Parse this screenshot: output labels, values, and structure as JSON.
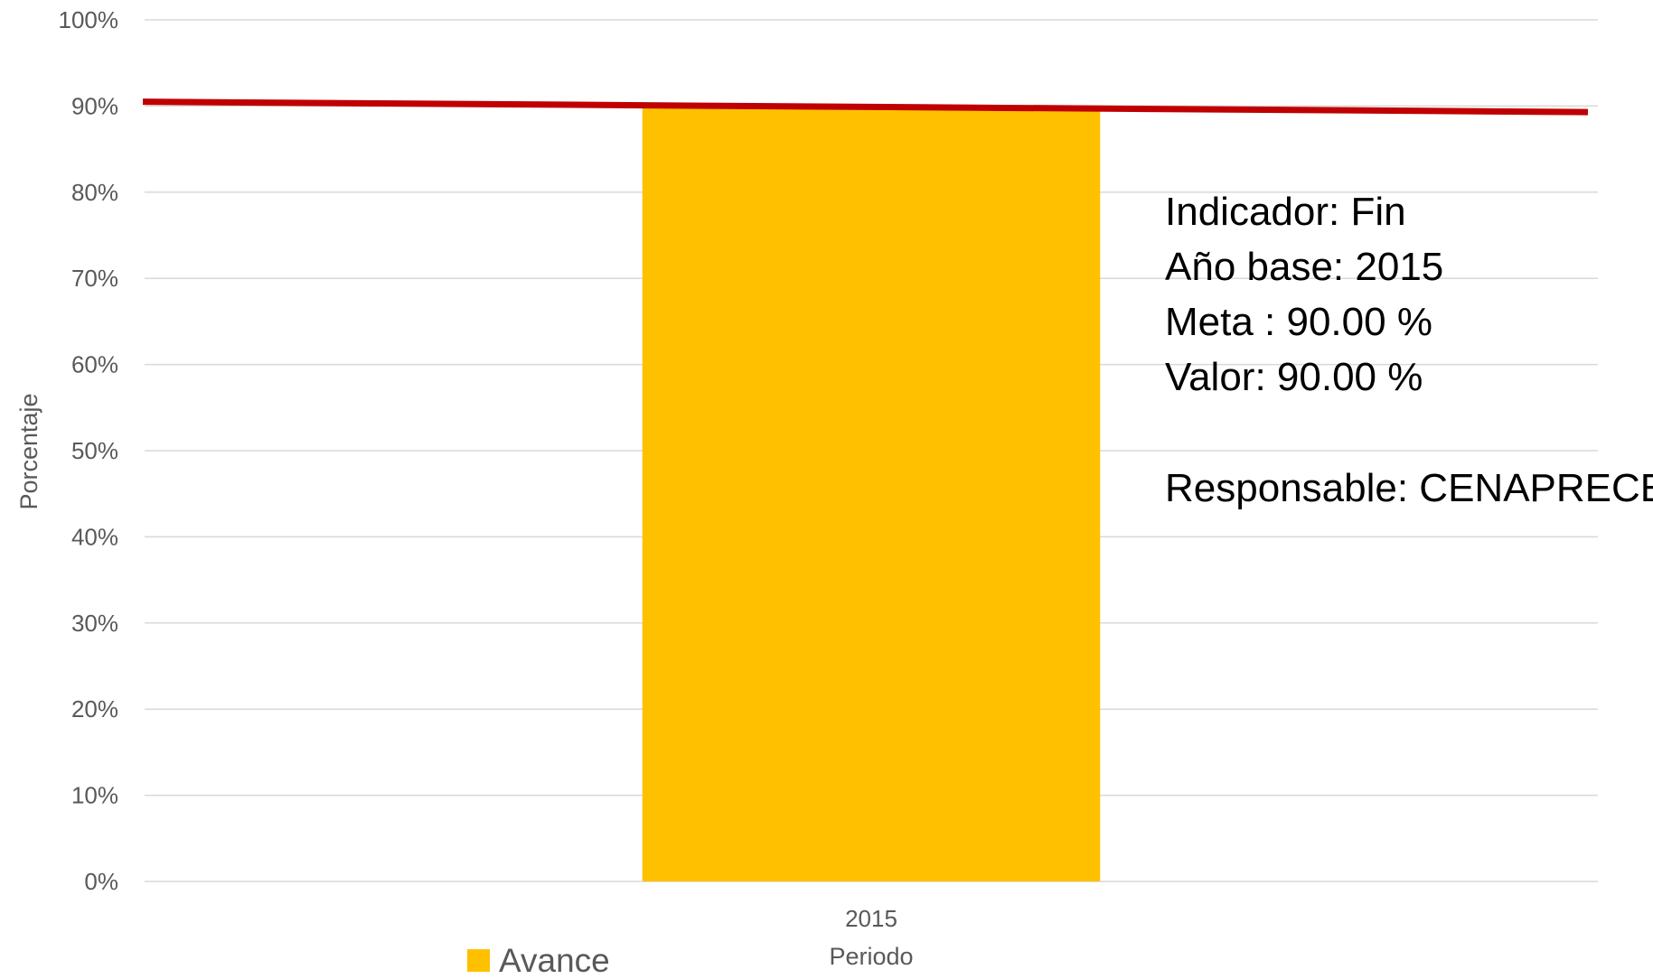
{
  "chart_data": {
    "type": "bar",
    "categories": [
      "2015"
    ],
    "series": [
      {
        "name": "Avance",
        "values": [
          90
        ],
        "color": "#FFC000"
      }
    ],
    "target_line": {
      "values": [
        90.5,
        89.3
      ],
      "color": "#C00000"
    },
    "ylabel": "Porcentaje",
    "xlabel": "Periodo",
    "ylim": [
      0,
      100
    ],
    "yticks": [
      "0%",
      "10%",
      "20%",
      "30%",
      "40%",
      "50%",
      "60%",
      "70%",
      "80%",
      "90%",
      "100%"
    ],
    "grid": true,
    "legend": {
      "position": "bottom-left",
      "entries": [
        "Avance"
      ]
    },
    "annotation_lines": [
      "Indicador: Fin",
      "Año base: 2015",
      "Meta : 90.00 %",
      "Valor:  90.00 %",
      "",
      "Responsable: CENAPRECE"
    ]
  }
}
